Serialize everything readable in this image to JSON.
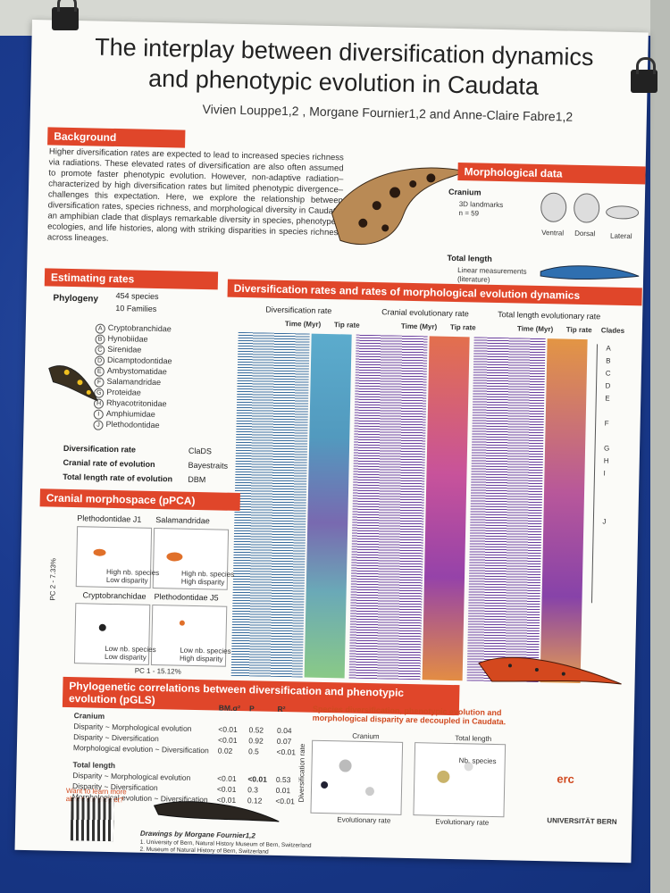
{
  "poster": {
    "title_line1": "The interplay between diversification dynamics",
    "title_line2": "and phenotypic evolution in Caudata",
    "authors": "Vivien Louppe1,2 , Morgane Fournier1,2 and Anne-Claire Fabre1,2"
  },
  "background": {
    "heading": "Background",
    "text": "Higher diversification rates are expected to lead to increased species richness via radiations. These elevated rates of diversification are also often assumed to promote faster phenotypic evolution. However, non-adaptive radiation–characterized by high diversification rates but limited phenotypic divergence–challenges this expectation. Here, we explore the relationship between diversification rates, species richness, and morphological diversity in Caudata, an amphibian clade that displays remarkable diversity in species, phenotypes, ecologies, and life histories, along with striking disparities in species richness across lineages."
  },
  "morpho": {
    "heading": "Morphological data",
    "cranium": "Cranium",
    "cranium_detail_1": "3D landmarks",
    "cranium_detail_2": "n = 59",
    "views": [
      "Ventral",
      "Dorsal",
      "Lateral"
    ],
    "total_length": "Total length",
    "tl_detail_1": "Linear measurements",
    "tl_detail_2": "(literature)"
  },
  "estimating": {
    "heading": "Estimating rates",
    "phylogeny": "Phylogeny",
    "species": "454 species",
    "families": "10 Families",
    "clades": [
      {
        "letter": "A",
        "name": "Cryptobranchidae"
      },
      {
        "letter": "B",
        "name": "Hynobiidae"
      },
      {
        "letter": "C",
        "name": "Sirenidae"
      },
      {
        "letter": "D",
        "name": "Dicamptodontidae"
      },
      {
        "letter": "E",
        "name": "Ambystomatidae"
      },
      {
        "letter": "F",
        "name": "Salamandridae"
      },
      {
        "letter": "G",
        "name": "Proteidae"
      },
      {
        "letter": "H",
        "name": "Rhyacotritonidae"
      },
      {
        "letter": "I",
        "name": "Amphiumidae"
      },
      {
        "letter": "J",
        "name": "Plethodontidae"
      }
    ],
    "methods": [
      {
        "label": "Diversification rate",
        "method": "ClaDS"
      },
      {
        "label": "Cranial rate of evolution",
        "method": "Bayestraits"
      },
      {
        "label": "Total length rate of evolution",
        "method": "DBM"
      }
    ]
  },
  "rates": {
    "heading": "Diversification rates and rates of morphological evolution dynamics",
    "panels": [
      "Diversification rate",
      "Cranial evolutionary rate",
      "Total length evolutionary rate"
    ],
    "time_label": "Time (Myr)",
    "tip_label": "Tip rate",
    "clades_label": "Clades",
    "clade_letters": [
      "A",
      "B",
      "C",
      "D",
      "E",
      "F",
      "G",
      "H",
      "I",
      "J"
    ]
  },
  "morphospace": {
    "heading": "Cranial morphospace (pPCA)",
    "plots": [
      {
        "title": "Plethodontidae J1",
        "note": ""
      },
      {
        "title": "Salamandridae",
        "note": ""
      },
      {
        "title": "Cryptobranchidae",
        "note": ""
      },
      {
        "title": "Plethodontidae J5",
        "note": ""
      }
    ],
    "notes": [
      "High nb. species",
      "Low disparity",
      "High nb. species",
      "High disparity",
      "Low nb. species",
      "Low disparity",
      "Low nb. species",
      "High disparity"
    ],
    "pc1": "PC 1 - 15.12%",
    "pc2": "PC 2 - 7.33%"
  },
  "correlations": {
    "heading": "Phylogenetic correlations between diversification and phenotypic evolution (pGLS)",
    "col_headers": [
      "BM.σ²",
      "P",
      "R²"
    ],
    "groups": [
      {
        "name": "Cranium",
        "rows": [
          {
            "label": "Disparity ~ Morphological evolution",
            "v": [
              "<0.01",
              "0.52",
              "0.04"
            ]
          },
          {
            "label": "Disparity ~ Diversification",
            "v": [
              "<0.01",
              "0.92",
              "0.07"
            ]
          },
          {
            "label": "Morphological evolution ~ Diversification",
            "v": [
              "0.02",
              "0.5",
              "<0.01"
            ]
          }
        ]
      },
      {
        "name": "Total length",
        "rows": [
          {
            "label": "Disparity ~ Morphological evolution",
            "v": [
              "<0.01",
              "<0.01",
              "0.53"
            ]
          },
          {
            "label": "Disparity ~ Diversification",
            "v": [
              "<0.01",
              "0.3",
              "0.01"
            ]
          },
          {
            "label": "Morphological evolution ~ Diversification",
            "v": [
              "<0.01",
              "0.12",
              "<0.01"
            ]
          }
        ]
      }
    ],
    "conclusion": "Species diversification, phenotypic evolution and morphological disparity are decoupled in Caudata.",
    "scatter_titles": [
      "Cranium",
      "Total length"
    ],
    "y_axis": "Diversification rate",
    "x_axis": "Evolutionary rate",
    "legend": "Nb. species"
  },
  "footer": {
    "qr_text": "Want to learn more about our project?",
    "drawings": "Drawings by Morgane Fournier1,2",
    "aff1": "1. University of Bern, Natural History Museum of Bern, Switzerland",
    "aff2": "2. Museum of Natural History of Bern, Switzerland",
    "erc": "erc",
    "unibe": "UNIVERSITÄT BERN"
  }
}
